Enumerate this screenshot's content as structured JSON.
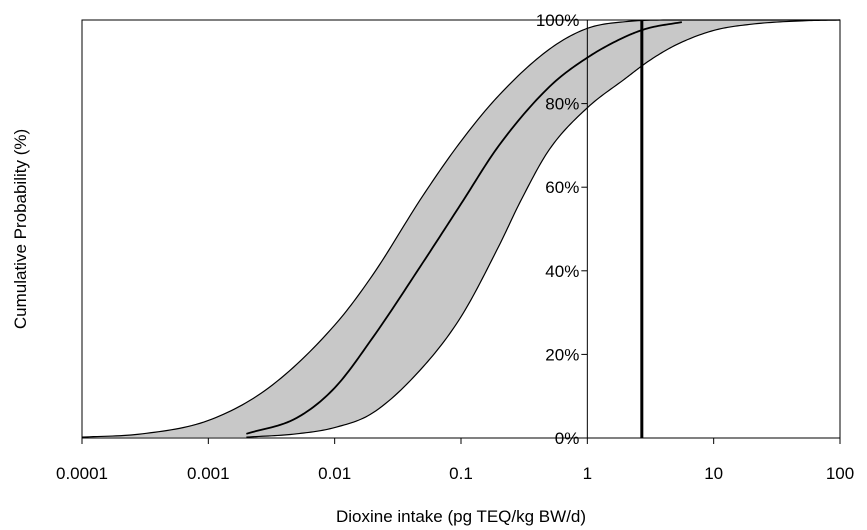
{
  "chart_data": {
    "type": "area",
    "title": "",
    "xlabel": "Dioxine intake (pg TEQ/kg BW/d)",
    "ylabel": "Cumulative Probability (%)",
    "xscale": "log",
    "xlim": [
      0.0001,
      100
    ],
    "ylim": [
      0,
      100
    ],
    "x_ticks": [
      "0.0001",
      "0.001",
      "0.01",
      "0.1",
      "1",
      "10",
      "100"
    ],
    "y_ticks": [
      "0%",
      "20%",
      "40%",
      "60%",
      "80%",
      "100%"
    ],
    "y_axis_position": "x = 1",
    "grid": false,
    "legend": "none",
    "band_color": "#c8c8c8",
    "line_color": "#000000",
    "series": [
      {
        "role": "upper-bound",
        "x": [
          0.0001,
          0.0003,
          0.001,
          0.003,
          0.01,
          0.02,
          0.05,
          0.1,
          0.2,
          0.5,
          1,
          2,
          5,
          10
        ],
        "y": [
          0.2,
          1.0,
          4.2,
          12,
          27,
          39,
          58,
          71,
          82,
          93,
          98,
          99.6,
          100,
          100
        ]
      },
      {
        "role": "median",
        "x": [
          0.002,
          0.005,
          0.01,
          0.02,
          0.05,
          0.1,
          0.2,
          0.5,
          1,
          2,
          3,
          5.6
        ],
        "y": [
          1.0,
          4.8,
          12,
          24,
          42,
          56,
          70,
          84,
          91,
          96,
          98,
          99.5
        ]
      },
      {
        "role": "lower-bound",
        "x": [
          0.002,
          0.005,
          0.01,
          0.02,
          0.05,
          0.1,
          0.2,
          0.3,
          0.5,
          1,
          2,
          3,
          5,
          10,
          20,
          50,
          100
        ],
        "y": [
          0.2,
          1.0,
          2.5,
          6,
          17,
          29,
          46,
          57,
          69,
          79,
          86,
          90,
          94,
          97.5,
          99,
          99.8,
          100
        ]
      }
    ],
    "reference_line": {
      "x": 2.7
    }
  }
}
